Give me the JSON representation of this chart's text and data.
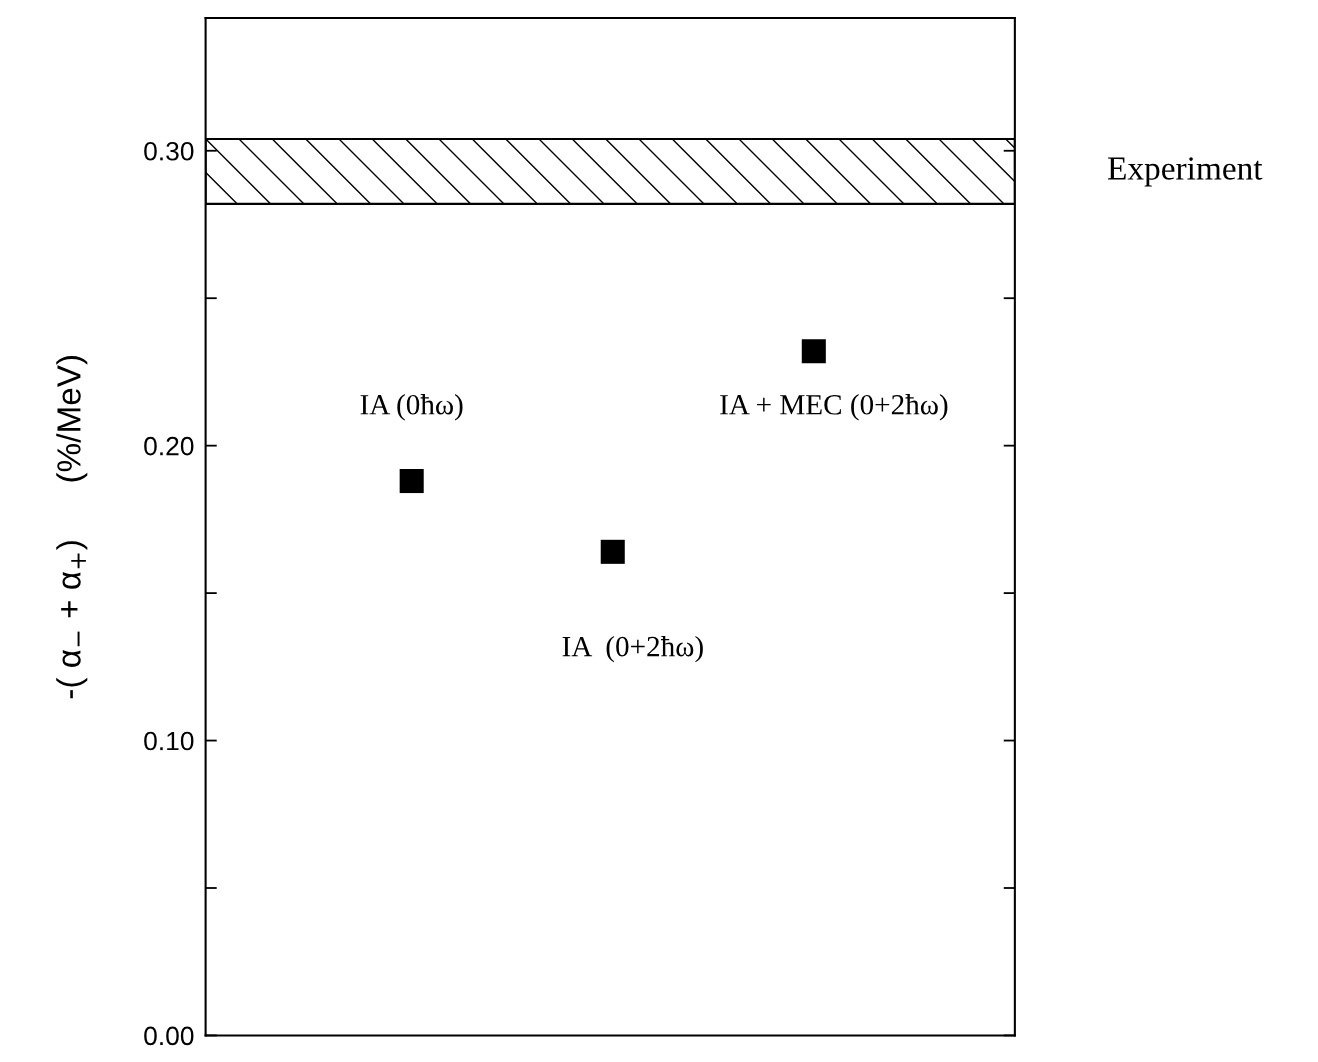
{
  "chart_data": {
    "type": "scatter",
    "ylabel": "-( α$_{−}$ + α$_{+}$)      (%/MeV)",
    "categories": [
      null,
      null,
      null
    ],
    "series": [
      {
        "color": "#000000",
        "values": [
          0.188,
          0.164,
          0.232
        ]
      }
    ],
    "marker": "square",
    "ylim": [
      0,
      0.345
    ],
    "yticks": [
      {
        "value": 0,
        "label": "0.00"
      },
      {
        "value": 0.05,
        "label": null
      },
      {
        "value": 0.1,
        "label": "0.10"
      },
      {
        "value": 0.15,
        "label": null
      },
      {
        "value": 0.2,
        "label": "0.20"
      },
      {
        "value": 0.25,
        "label": null
      },
      {
        "value": 0.3,
        "label": "0.30"
      }
    ],
    "bands": [
      {
        "axis": "y",
        "from": 0.282,
        "to": 0.304,
        "label": "Experiment",
        "color": "#000000"
      }
    ],
    "annotations": [
      "IA (0ħω)",
      "IA  (0+2ħω)",
      "IA + MEC (0+2ħω)"
    ],
    "grid": false,
    "legend": false
  }
}
